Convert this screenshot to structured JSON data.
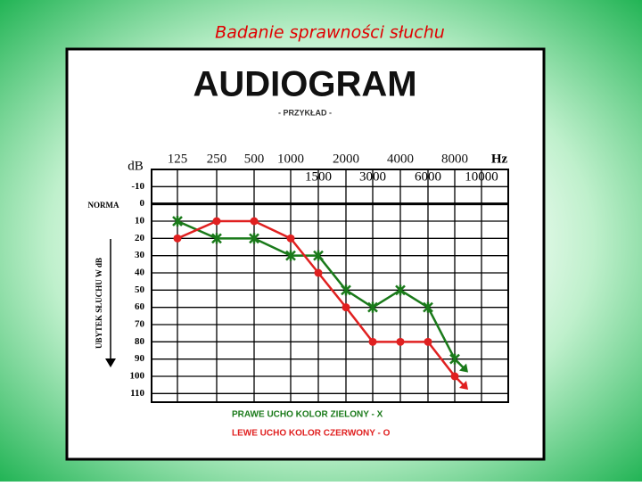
{
  "slide_title": "Badanie sprawności słuchu",
  "chart_data": {
    "type": "line",
    "title": "AUDIOGRAM",
    "subtitle": "- PRZYKŁAD -",
    "x_unit": "Hz",
    "y_unit": "dB",
    "norm_label": "NORMA",
    "y_label": "UBYTEK SŁUCHU W dB",
    "categories": [
      "125",
      "250",
      "500",
      "1000",
      "1500",
      "2000",
      "3000",
      "4000",
      "6000",
      "8000",
      "10000"
    ],
    "series": [
      {
        "name": "PRAWE UCHO KOLOR ZIELONY - X",
        "color": "#1a7a1a",
        "marker": "x",
        "values": [
          10,
          20,
          20,
          30,
          30,
          50,
          60,
          50,
          60,
          90,
          null
        ]
      },
      {
        "name": "LEWE UCHO KOLOR CZERWONY - O",
        "color": "#e02020",
        "marker": "o",
        "values": [
          20,
          10,
          10,
          20,
          40,
          60,
          80,
          80,
          80,
          100,
          null
        ]
      }
    ],
    "ylim": [
      -20,
      115
    ],
    "yticks": [
      -10,
      0,
      10,
      20,
      30,
      40,
      50,
      60,
      70,
      80,
      90,
      100,
      110
    ],
    "y_inverted": true,
    "grid": true
  }
}
